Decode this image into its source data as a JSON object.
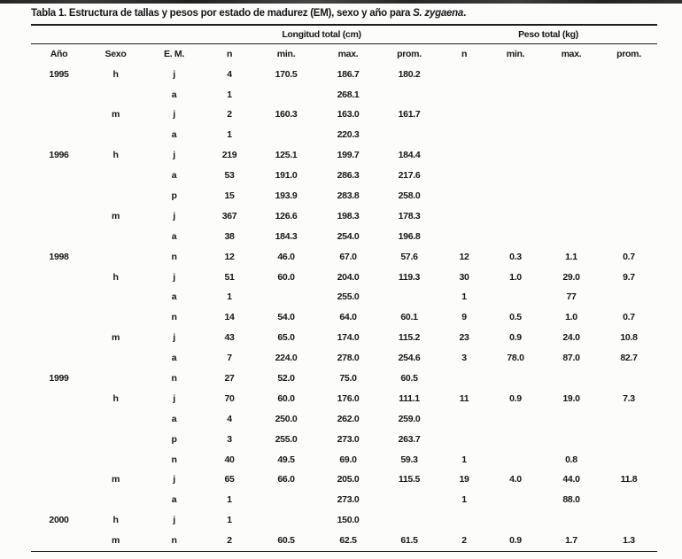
{
  "title": {
    "prefix": "Tabla 1. Estructura de tallas y pesos por estado de madurez (EM), sexo y año para ",
    "species": "S. zygaena",
    "suffix": "."
  },
  "table": {
    "group_headers": [
      {
        "label": "Longitud total (cm)"
      },
      {
        "label": "Peso total (kg)"
      }
    ],
    "columns": [
      "Año",
      "Sexo",
      "E. M.",
      "n",
      "min.",
      "max.",
      "prom.",
      "n",
      "min.",
      "max.",
      "prom."
    ],
    "column_keys": [
      "anio",
      "sexo",
      "em",
      "n-longitud",
      "min-longitud",
      "max-longitud",
      "prom-longitud",
      "n-peso",
      "min-peso",
      "max-peso",
      "prom-peso"
    ],
    "rows": [
      [
        "1995",
        "h",
        "j",
        "4",
        "170.5",
        "186.7",
        "180.2",
        "",
        "",
        "",
        ""
      ],
      [
        "",
        "",
        "a",
        "1",
        "",
        "268.1",
        "",
        "",
        "",
        "",
        ""
      ],
      [
        "",
        "m",
        "j",
        "2",
        "160.3",
        "163.0",
        "161.7",
        "",
        "",
        "",
        ""
      ],
      [
        "",
        "",
        "a",
        "1",
        "",
        "220.3",
        "",
        "",
        "",
        "",
        ""
      ],
      [
        "1996",
        "h",
        "j",
        "219",
        "125.1",
        "199.7",
        "184.4",
        "",
        "",
        "",
        ""
      ],
      [
        "",
        "",
        "a",
        "53",
        "191.0",
        "286.3",
        "217.6",
        "",
        "",
        "",
        ""
      ],
      [
        "",
        "",
        "p",
        "15",
        "193.9",
        "283.8",
        "258.0",
        "",
        "",
        "",
        ""
      ],
      [
        "",
        "m",
        "j",
        "367",
        "126.6",
        "198.3",
        "178.3",
        "",
        "",
        "",
        ""
      ],
      [
        "",
        "",
        "a",
        "38",
        "184.3",
        "254.0",
        "196.8",
        "",
        "",
        "",
        ""
      ],
      [
        "1998",
        "",
        "n",
        "12",
        "46.0",
        "67.0",
        "57.6",
        "12",
        "0.3",
        "1.1",
        "0.7"
      ],
      [
        "",
        "h",
        "j",
        "51",
        "60.0",
        "204.0",
        "119.3",
        "30",
        "1.0",
        "29.0",
        "9.7"
      ],
      [
        "",
        "",
        "a",
        "1",
        "",
        "255.0",
        "",
        "1",
        "",
        "77",
        ""
      ],
      [
        "",
        "",
        "n",
        "14",
        "54.0",
        "64.0",
        "60.1",
        "9",
        "0.5",
        "1.0",
        "0.7"
      ],
      [
        "",
        "m",
        "j",
        "43",
        "65.0",
        "174.0",
        "115.2",
        "23",
        "0.9",
        "24.0",
        "10.8"
      ],
      [
        "",
        "",
        "a",
        "7",
        "224.0",
        "278.0",
        "254.6",
        "3",
        "78.0",
        "87.0",
        "82.7"
      ],
      [
        "1999",
        "",
        "n",
        "27",
        "52.0",
        "75.0",
        "60.5",
        "",
        "",
        "",
        ""
      ],
      [
        "",
        "h",
        "j",
        "70",
        "60.0",
        "176.0",
        "111.1",
        "11",
        "0.9",
        "19.0",
        "7.3"
      ],
      [
        "",
        "",
        "a",
        "4",
        "250.0",
        "262.0",
        "259.0",
        "",
        "",
        "",
        ""
      ],
      [
        "",
        "",
        "p",
        "3",
        "255.0",
        "273.0",
        "263.7",
        "",
        "",
        "",
        ""
      ],
      [
        "",
        "",
        "n",
        "40",
        "49.5",
        "69.0",
        "59.3",
        "1",
        "",
        "0.8",
        ""
      ],
      [
        "",
        "m",
        "j",
        "65",
        "66.0",
        "205.0",
        "115.5",
        "19",
        "4.0",
        "44.0",
        "11.8"
      ],
      [
        "",
        "",
        "a",
        "1",
        "",
        "273.0",
        "",
        "1",
        "",
        "88.0",
        ""
      ],
      [
        "2000",
        "h",
        "j",
        "1",
        "",
        "150.0",
        "",
        "",
        "",
        "",
        ""
      ],
      [
        "",
        "m",
        "n",
        "2",
        "60.5",
        "62.5",
        "61.5",
        "2",
        "0.9",
        "1.7",
        "1.3"
      ]
    ]
  },
  "colors": {
    "text": "#161616",
    "rule": "#1c1c1c",
    "background": "#fcfcfb",
    "scan_artifact": "#2e2e2e"
  }
}
